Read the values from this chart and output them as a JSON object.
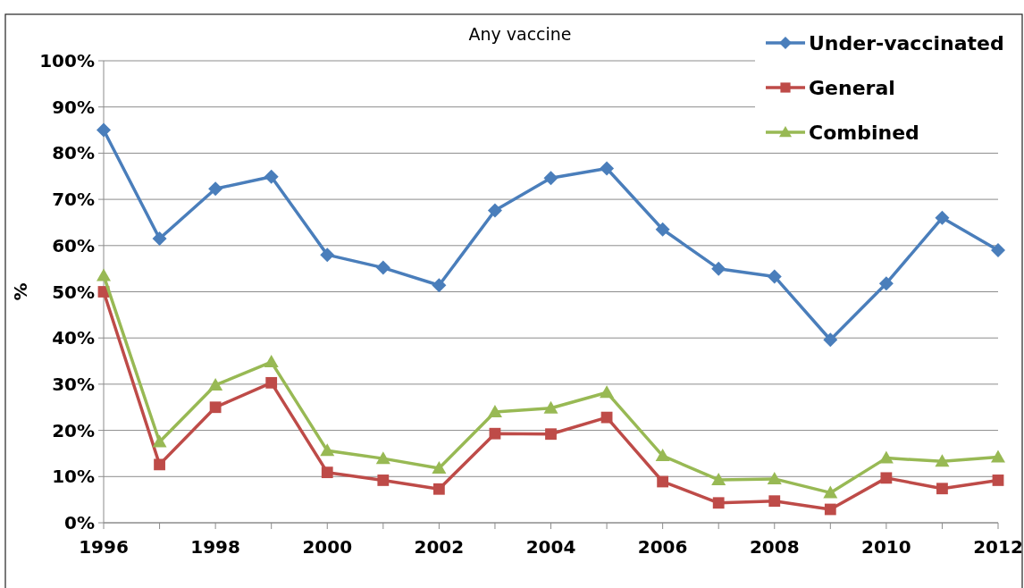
{
  "chart_data": {
    "type": "line",
    "title": "Any vaccine",
    "ylabel": "%",
    "x": [
      1996,
      1997,
      1998,
      1999,
      2000,
      2001,
      2002,
      2003,
      2004,
      2005,
      2006,
      2007,
      2008,
      2009,
      2010,
      2011,
      2012
    ],
    "series": [
      {
        "name": "Under-vaccinated",
        "color": "#4a7ebb",
        "marker": "diamond",
        "values": [
          85,
          61.5,
          72.3,
          74.9,
          58,
          55.2,
          51.4,
          67.6,
          74.6,
          76.7,
          63.5,
          55,
          53.3,
          39.6,
          51.8,
          66,
          59
        ]
      },
      {
        "name": "General",
        "color": "#be4b48",
        "marker": "square",
        "values": [
          50,
          12.6,
          25,
          30.3,
          10.9,
          9.2,
          7.3,
          19.3,
          19.2,
          22.8,
          8.9,
          4.3,
          4.7,
          2.9,
          9.7,
          7.4,
          9.2
        ]
      },
      {
        "name": "Combined",
        "color": "#98b954",
        "marker": "triangle",
        "values": [
          53.5,
          17.5,
          29.8,
          34.8,
          15.6,
          13.9,
          11.8,
          24,
          24.8,
          28.2,
          14.5,
          9.3,
          9.5,
          6.5,
          14,
          13.3,
          14.2
        ]
      }
    ],
    "xlim": [
      1996,
      2012
    ],
    "xticks": [
      1996,
      1998,
      2000,
      2002,
      2004,
      2006,
      2008,
      2010,
      2012
    ],
    "ylim": [
      0,
      100
    ],
    "yticks": [
      {
        "value": 0,
        "label": "0%"
      },
      {
        "value": 10,
        "label": "10%"
      },
      {
        "value": 20,
        "label": "20%"
      },
      {
        "value": 30,
        "label": "30%"
      },
      {
        "value": 40,
        "label": "40%"
      },
      {
        "value": 50,
        "label": "50%"
      },
      {
        "value": 60,
        "label": "60%"
      },
      {
        "value": 70,
        "label": "70%"
      },
      {
        "value": 80,
        "label": "80%"
      },
      {
        "value": 90,
        "label": "90%"
      },
      {
        "value": 100,
        "label": "100%"
      }
    ],
    "grid": "y",
    "legend": "top right",
    "line_style": "solid"
  }
}
